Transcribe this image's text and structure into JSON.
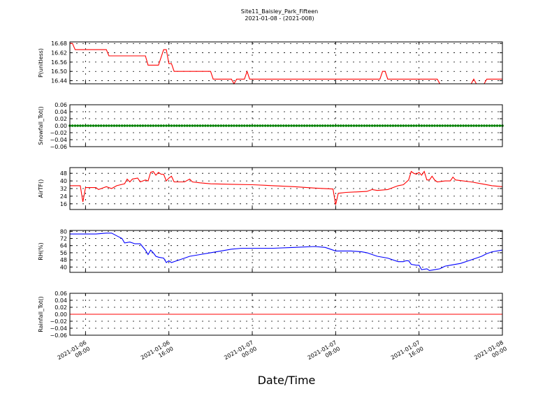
{
  "chart_data": {
    "type": "line",
    "title": "Site11_Baisley_Park_Fifteen",
    "subtitle": "2021-01-08 - (2021-008)",
    "xlabel": "Date/Time",
    "x_range": [
      "2021-01-06 06:30",
      "2021-01-08 00:00"
    ],
    "x_ticks": [
      {
        "t": "2021-01-06 08:00",
        "l1": "2021-01-06",
        "l2": "08:00"
      },
      {
        "t": "2021-01-06 16:00",
        "l1": "2021-01-06",
        "l2": "16:00"
      },
      {
        "t": "2021-01-07 00:00",
        "l1": "2021-01-07",
        "l2": "00:00"
      },
      {
        "t": "2021-01-07 08:00",
        "l1": "2021-01-07",
        "l2": "08:00"
      },
      {
        "t": "2021-01-07 16:00",
        "l1": "2021-01-07",
        "l2": "16:00"
      },
      {
        "t": "2021-01-08 00:00",
        "l1": "2021-01-08",
        "l2": "00:00"
      }
    ],
    "grid": true,
    "panels": [
      {
        "ylabel": "P(unitless)",
        "ylim": [
          16.42,
          16.69
        ],
        "yticks": [
          16.44,
          16.5,
          16.56,
          16.62,
          16.68
        ],
        "tick_labels": [
          "16.44",
          "16.50",
          "16.56",
          "16.62",
          "16.68"
        ],
        "color": "#ff0000",
        "points": [
          [
            "2021-01-06 06:30",
            16.68
          ],
          [
            "2021-01-06 06:45",
            16.68
          ],
          [
            "2021-01-06 07:00",
            16.64
          ],
          [
            "2021-01-06 10:00",
            16.64
          ],
          [
            "2021-01-06 10:15",
            16.6
          ],
          [
            "2021-01-06 13:45",
            16.6
          ],
          [
            "2021-01-06 14:00",
            16.54
          ],
          [
            "2021-01-06 14:45",
            16.54
          ],
          [
            "2021-01-06 15:00",
            16.54
          ],
          [
            "2021-01-06 15:30",
            16.64
          ],
          [
            "2021-01-06 15:45",
            16.64
          ],
          [
            "2021-01-06 16:00",
            16.55
          ],
          [
            "2021-01-06 16:15",
            16.55
          ],
          [
            "2021-01-06 16:30",
            16.5
          ],
          [
            "2021-01-06 20:00",
            16.5
          ],
          [
            "2021-01-06 20:15",
            16.45
          ],
          [
            "2021-01-06 22:00",
            16.45
          ],
          [
            "2021-01-06 22:15",
            16.42
          ],
          [
            "2021-01-06 22:30",
            16.45
          ],
          [
            "2021-01-06 23:15",
            16.45
          ],
          [
            "2021-01-06 23:30",
            16.5
          ],
          [
            "2021-01-06 23:45",
            16.45
          ],
          [
            "2021-01-07 12:15",
            16.45
          ],
          [
            "2021-01-07 12:30",
            16.5
          ],
          [
            "2021-01-07 12:45",
            16.5
          ],
          [
            "2021-01-07 13:00",
            16.45
          ],
          [
            "2021-01-07 17:45",
            16.45
          ],
          [
            "2021-01-07 18:00",
            16.42
          ],
          [
            "2021-01-07 21:00",
            16.42
          ],
          [
            "2021-01-07 21:15",
            16.45
          ],
          [
            "2021-01-07 21:30",
            16.42
          ],
          [
            "2021-01-07 22:15",
            16.42
          ],
          [
            "2021-01-07 22:30",
            16.45
          ],
          [
            "2021-01-08 00:00",
            16.45
          ]
        ]
      },
      {
        "ylabel": "Snowfall_Tot()",
        "ylim": [
          -0.06,
          0.06
        ],
        "yticks": [
          -0.06,
          -0.04,
          -0.02,
          0.0,
          0.02,
          0.04,
          0.06
        ],
        "tick_labels": [
          "−0.06",
          "−0.04",
          "−0.02",
          "0.00",
          "0.02",
          "0.04",
          "0.06"
        ],
        "color": "#008000",
        "constant": 0.0,
        "markers": true,
        "points": [
          [
            "2021-01-06 06:30",
            0.0
          ],
          [
            "2021-01-08 00:00",
            0.0
          ]
        ]
      },
      {
        "ylabel": "AirTF()",
        "ylim": [
          10,
          54
        ],
        "yticks": [
          16,
          24,
          32,
          40,
          48
        ],
        "tick_labels": [
          "16",
          "24",
          "32",
          "40",
          "48"
        ],
        "color": "#ff0000",
        "points": [
          [
            "2021-01-06 06:30",
            35
          ],
          [
            "2021-01-06 07:30",
            35
          ],
          [
            "2021-01-06 07:45",
            18
          ],
          [
            "2021-01-06 08:00",
            33
          ],
          [
            "2021-01-06 09:00",
            33
          ],
          [
            "2021-01-06 09:15",
            31
          ],
          [
            "2021-01-06 10:00",
            34
          ],
          [
            "2021-01-06 10:30",
            32
          ],
          [
            "2021-01-06 11:00",
            35
          ],
          [
            "2021-01-06 11:45",
            37
          ],
          [
            "2021-01-06 12:00",
            42
          ],
          [
            "2021-01-06 12:15",
            39
          ],
          [
            "2021-01-06 12:30",
            42
          ],
          [
            "2021-01-06 13:00",
            43
          ],
          [
            "2021-01-06 13:15",
            39
          ],
          [
            "2021-01-06 13:45",
            41
          ],
          [
            "2021-01-06 14:00",
            40
          ],
          [
            "2021-01-06 14:15",
            49
          ],
          [
            "2021-01-06 14:30",
            50
          ],
          [
            "2021-01-06 14:45",
            46
          ],
          [
            "2021-01-06 15:00",
            49
          ],
          [
            "2021-01-06 15:15",
            47
          ],
          [
            "2021-01-06 15:30",
            47
          ],
          [
            "2021-01-06 15:45",
            40
          ],
          [
            "2021-01-06 16:00",
            43
          ],
          [
            "2021-01-06 16:15",
            45
          ],
          [
            "2021-01-06 16:30",
            39
          ],
          [
            "2021-01-06 17:30",
            39
          ],
          [
            "2021-01-06 18:00",
            42
          ],
          [
            "2021-01-06 18:15",
            39
          ],
          [
            "2021-01-06 19:00",
            38
          ],
          [
            "2021-01-06 20:00",
            37
          ],
          [
            "2021-01-06 22:00",
            36.5
          ],
          [
            "2021-01-07 00:00",
            36
          ],
          [
            "2021-01-07 02:00",
            35
          ],
          [
            "2021-01-07 04:00",
            34
          ],
          [
            "2021-01-07 06:00",
            32.5
          ],
          [
            "2021-01-07 07:45",
            31.5
          ],
          [
            "2021-01-07 08:00",
            15
          ],
          [
            "2021-01-07 08:15",
            27
          ],
          [
            "2021-01-07 09:00",
            28
          ],
          [
            "2021-01-07 11:00",
            29
          ],
          [
            "2021-01-07 11:30",
            31
          ],
          [
            "2021-01-07 12:00",
            30
          ],
          [
            "2021-01-07 13:00",
            31
          ],
          [
            "2021-01-07 14:00",
            35
          ],
          [
            "2021-01-07 14:30",
            36
          ],
          [
            "2021-01-07 15:00",
            41
          ],
          [
            "2021-01-07 15:15",
            50
          ],
          [
            "2021-01-07 15:30",
            48
          ],
          [
            "2021-01-07 15:45",
            47
          ],
          [
            "2021-01-07 16:00",
            49
          ],
          [
            "2021-01-07 16:15",
            46
          ],
          [
            "2021-01-07 16:30",
            50
          ],
          [
            "2021-01-07 16:45",
            41
          ],
          [
            "2021-01-07 17:00",
            41
          ],
          [
            "2021-01-07 17:15",
            45
          ],
          [
            "2021-01-07 17:30",
            41
          ],
          [
            "2021-01-07 17:45",
            39
          ],
          [
            "2021-01-07 18:30",
            40
          ],
          [
            "2021-01-07 19:00",
            40
          ],
          [
            "2021-01-07 19:15",
            44
          ],
          [
            "2021-01-07 19:30",
            41
          ],
          [
            "2021-01-07 21:00",
            39
          ],
          [
            "2021-01-07 22:00",
            37
          ],
          [
            "2021-01-07 23:00",
            35
          ],
          [
            "2021-01-08 00:00",
            34
          ]
        ]
      },
      {
        "ylabel": "RH(%)",
        "ylim": [
          34,
          81
        ],
        "yticks": [
          40,
          48,
          56,
          64,
          72,
          80
        ],
        "tick_labels": [
          "40",
          "48",
          "56",
          "64",
          "72",
          "80"
        ],
        "color": "#0000ff",
        "points": [
          [
            "2021-01-06 06:30",
            77
          ],
          [
            "2021-01-06 08:00",
            77
          ],
          [
            "2021-01-06 08:15",
            77
          ],
          [
            "2021-01-06 09:00",
            77
          ],
          [
            "2021-01-06 10:00",
            78
          ],
          [
            "2021-01-06 10:30",
            78
          ],
          [
            "2021-01-06 11:00",
            75
          ],
          [
            "2021-01-06 11:30",
            72
          ],
          [
            "2021-01-06 11:45",
            67
          ],
          [
            "2021-01-06 12:15",
            68
          ],
          [
            "2021-01-06 12:45",
            66
          ],
          [
            "2021-01-06 13:15",
            66
          ],
          [
            "2021-01-06 13:45",
            59
          ],
          [
            "2021-01-06 14:00",
            54
          ],
          [
            "2021-01-06 14:15",
            59
          ],
          [
            "2021-01-06 14:30",
            56
          ],
          [
            "2021-01-06 14:45",
            52
          ],
          [
            "2021-01-06 15:00",
            51
          ],
          [
            "2021-01-06 15:30",
            50
          ],
          [
            "2021-01-06 15:45",
            45
          ],
          [
            "2021-01-06 16:00",
            47
          ],
          [
            "2021-01-06 16:15",
            45
          ],
          [
            "2021-01-06 16:45",
            47
          ],
          [
            "2021-01-06 17:30",
            50
          ],
          [
            "2021-01-06 18:00",
            52
          ],
          [
            "2021-01-06 19:00",
            54
          ],
          [
            "2021-01-06 20:00",
            56
          ],
          [
            "2021-01-06 21:00",
            58
          ],
          [
            "2021-01-06 22:00",
            60
          ],
          [
            "2021-01-06 23:00",
            61
          ],
          [
            "2021-01-07 00:00",
            61
          ],
          [
            "2021-01-07 02:00",
            61
          ],
          [
            "2021-01-07 04:00",
            62
          ],
          [
            "2021-01-07 06:00",
            63
          ],
          [
            "2021-01-07 07:00",
            62
          ],
          [
            "2021-01-07 07:30",
            60
          ],
          [
            "2021-01-07 08:00",
            58
          ],
          [
            "2021-01-07 08:30",
            58
          ],
          [
            "2021-01-07 09:30",
            58
          ],
          [
            "2021-01-07 10:30",
            57
          ],
          [
            "2021-01-07 11:00",
            56
          ],
          [
            "2021-01-07 11:30",
            54
          ],
          [
            "2021-01-07 12:00",
            52
          ],
          [
            "2021-01-07 13:00",
            50
          ],
          [
            "2021-01-07 14:00",
            46
          ],
          [
            "2021-01-07 14:30",
            46
          ],
          [
            "2021-01-07 14:45",
            47
          ],
          [
            "2021-01-07 15:00",
            47
          ],
          [
            "2021-01-07 15:15",
            43
          ],
          [
            "2021-01-07 15:45",
            42
          ],
          [
            "2021-01-07 16:00",
            42
          ],
          [
            "2021-01-07 16:15",
            37
          ],
          [
            "2021-01-07 16:45",
            38
          ],
          [
            "2021-01-07 17:00",
            36
          ],
          [
            "2021-01-07 17:30",
            37
          ],
          [
            "2021-01-07 18:00",
            38
          ],
          [
            "2021-01-07 18:30",
            41
          ],
          [
            "2021-01-07 19:00",
            42
          ],
          [
            "2021-01-07 20:00",
            44
          ],
          [
            "2021-01-07 21:00",
            48
          ],
          [
            "2021-01-07 22:00",
            52
          ],
          [
            "2021-01-07 22:30",
            55
          ],
          [
            "2021-01-07 23:00",
            57
          ],
          [
            "2021-01-08 00:00",
            59
          ]
        ]
      },
      {
        "ylabel": "Rainfall_Tot()",
        "ylim": [
          -0.06,
          0.06
        ],
        "yticks": [
          -0.06,
          -0.04,
          -0.02,
          0.0,
          0.02,
          0.04,
          0.06
        ],
        "tick_labels": [
          "−0.06",
          "−0.04",
          "−0.02",
          "0.00",
          "0.02",
          "0.04",
          "0.06"
        ],
        "color": "#ff0000",
        "constant": 0.0,
        "points": [
          [
            "2021-01-06 06:30",
            0.0
          ],
          [
            "2021-01-08 00:00",
            0.0
          ]
        ]
      }
    ]
  }
}
